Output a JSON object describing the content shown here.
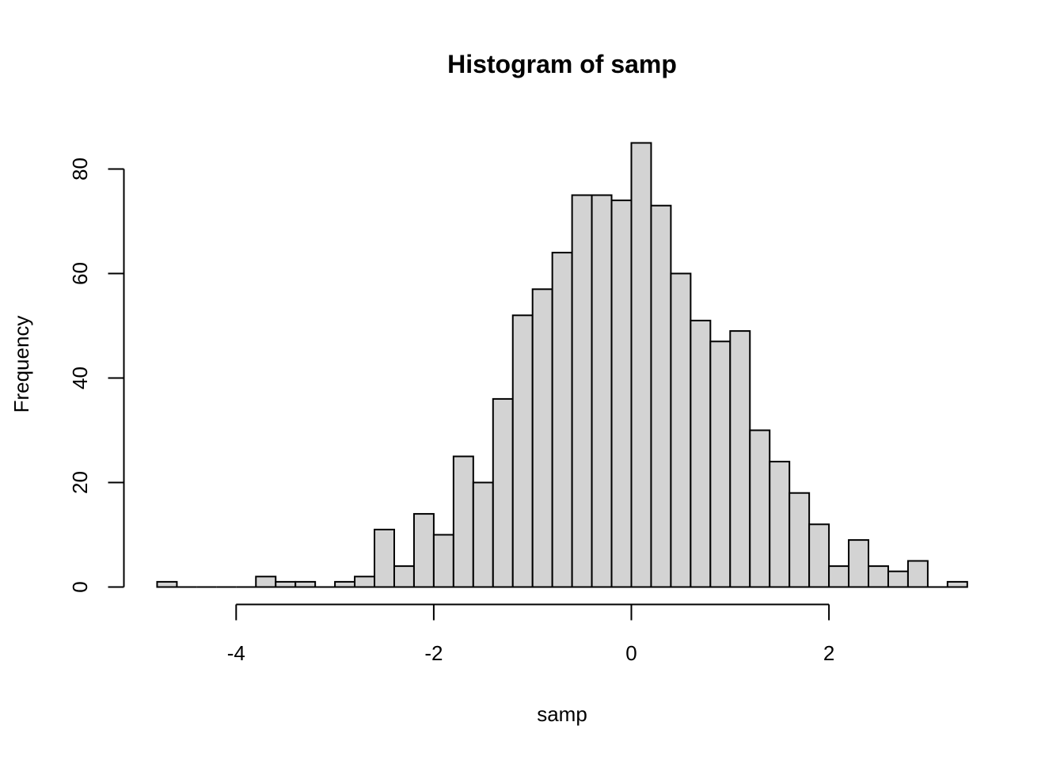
{
  "chart_data": {
    "type": "bar",
    "title": "Histogram of samp",
    "xlabel": "samp",
    "ylabel": "Frequency",
    "bin_width": 0.2,
    "bins": [
      {
        "start": -4.8,
        "end": -4.6,
        "count": 1
      },
      {
        "start": -4.6,
        "end": -4.4,
        "count": 0
      },
      {
        "start": -4.4,
        "end": -4.2,
        "count": 0
      },
      {
        "start": -4.2,
        "end": -4.0,
        "count": 0
      },
      {
        "start": -4.0,
        "end": -3.8,
        "count": 0
      },
      {
        "start": -3.8,
        "end": -3.6,
        "count": 2
      },
      {
        "start": -3.6,
        "end": -3.4,
        "count": 1
      },
      {
        "start": -3.4,
        "end": -3.2,
        "count": 1
      },
      {
        "start": -3.2,
        "end": -3.0,
        "count": 0
      },
      {
        "start": -3.0,
        "end": -2.8,
        "count": 1
      },
      {
        "start": -2.8,
        "end": -2.6,
        "count": 2
      },
      {
        "start": -2.6,
        "end": -2.4,
        "count": 11
      },
      {
        "start": -2.4,
        "end": -2.2,
        "count": 4
      },
      {
        "start": -2.2,
        "end": -2.0,
        "count": 14
      },
      {
        "start": -2.0,
        "end": -1.8,
        "count": 10
      },
      {
        "start": -1.8,
        "end": -1.6,
        "count": 25
      },
      {
        "start": -1.6,
        "end": -1.4,
        "count": 20
      },
      {
        "start": -1.4,
        "end": -1.2,
        "count": 36
      },
      {
        "start": -1.2,
        "end": -1.0,
        "count": 52
      },
      {
        "start": -1.0,
        "end": -0.8,
        "count": 57
      },
      {
        "start": -0.8,
        "end": -0.6,
        "count": 64
      },
      {
        "start": -0.6,
        "end": -0.4,
        "count": 75
      },
      {
        "start": -0.4,
        "end": -0.2,
        "count": 75
      },
      {
        "start": -0.2,
        "end": 0.0,
        "count": 74
      },
      {
        "start": 0.0,
        "end": 0.2,
        "count": 85
      },
      {
        "start": 0.2,
        "end": 0.4,
        "count": 73
      },
      {
        "start": 0.4,
        "end": 0.6,
        "count": 60
      },
      {
        "start": 0.6,
        "end": 0.8,
        "count": 51
      },
      {
        "start": 0.8,
        "end": 1.0,
        "count": 47
      },
      {
        "start": 1.0,
        "end": 1.2,
        "count": 49
      },
      {
        "start": 1.2,
        "end": 1.4,
        "count": 30
      },
      {
        "start": 1.4,
        "end": 1.6,
        "count": 24
      },
      {
        "start": 1.6,
        "end": 1.8,
        "count": 18
      },
      {
        "start": 1.8,
        "end": 2.0,
        "count": 12
      },
      {
        "start": 2.0,
        "end": 2.2,
        "count": 4
      },
      {
        "start": 2.2,
        "end": 2.4,
        "count": 9
      },
      {
        "start": 2.4,
        "end": 2.6,
        "count": 4
      },
      {
        "start": 2.6,
        "end": 2.8,
        "count": 3
      },
      {
        "start": 2.8,
        "end": 3.0,
        "count": 5
      },
      {
        "start": 3.0,
        "end": 3.2,
        "count": 0
      },
      {
        "start": 3.2,
        "end": 3.4,
        "count": 1
      }
    ],
    "xlim": [
      -4.8,
      3.4
    ],
    "ylim": [
      0,
      85
    ],
    "x_ticks": [
      -4,
      -2,
      0,
      2
    ],
    "x_tick_labels": [
      "-4",
      "-2",
      "0",
      "2"
    ],
    "y_ticks": [
      0,
      20,
      40,
      60,
      80
    ],
    "y_tick_labels": [
      "0",
      "20",
      "40",
      "60",
      "80"
    ],
    "grid": false,
    "legend": false,
    "bar_fill": "#d3d3d3",
    "bar_stroke": "#000000"
  }
}
